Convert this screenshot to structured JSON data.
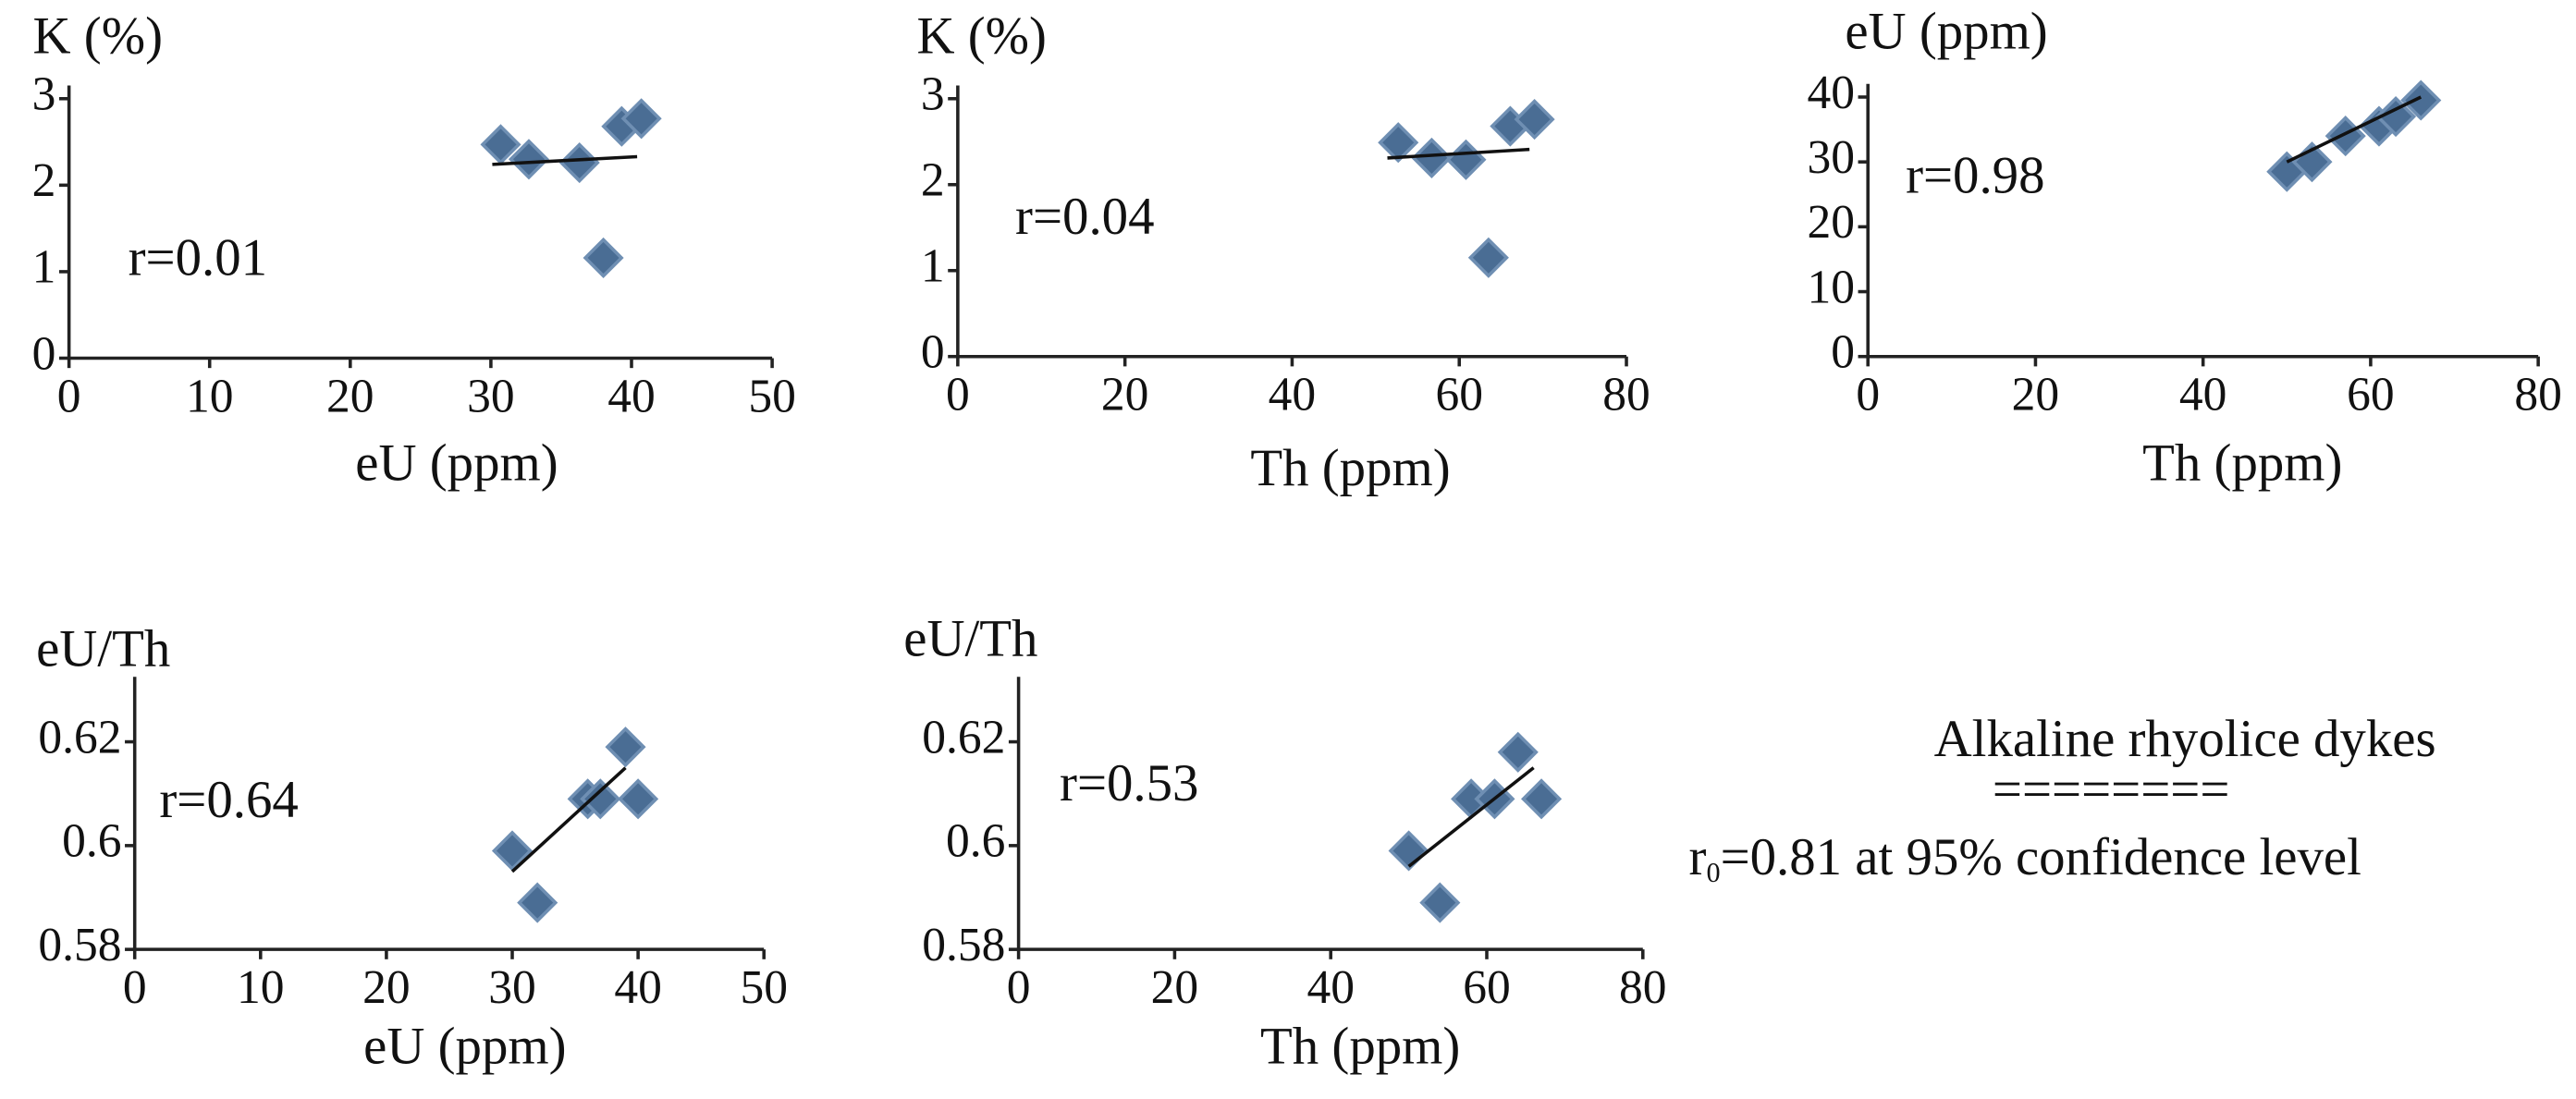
{
  "chart_data": [
    {
      "type": "scatter",
      "ylabel": "K (%)",
      "xlabel": "eU (ppm)",
      "annotation": "r=0.01",
      "color": "#4a6d94",
      "x": [
        30.7,
        32.7,
        36.3,
        38,
        39.3,
        40.7
      ],
      "values": [
        2.47,
        2.3,
        2.26,
        1.16,
        2.68,
        2.77
      ],
      "trend": {
        "x": [
          30.1,
          40.4
        ],
        "values": [
          2.24,
          2.33
        ]
      },
      "xlim": [
        0,
        50
      ],
      "xticks": [
        0,
        10,
        20,
        30,
        40,
        50
      ],
      "ylim": [
        0,
        3
      ],
      "yticks": [
        0,
        1,
        2,
        3
      ]
    },
    {
      "type": "scatter",
      "ylabel": "K (%)",
      "xlabel": "Th (ppm)",
      "annotation": "r=0.04",
      "color": "#4a6d94",
      "x": [
        52.7,
        56.7,
        60.8,
        63.5,
        66.1,
        69
      ],
      "values": [
        2.49,
        2.31,
        2.29,
        1.15,
        2.68,
        2.76
      ],
      "trend": {
        "x": [
          51.4,
          68.4
        ],
        "values": [
          2.31,
          2.41
        ]
      },
      "xlim": [
        0,
        80
      ],
      "xticks": [
        0,
        20,
        40,
        60,
        80
      ],
      "ylim": [
        0,
        3
      ],
      "yticks": [
        0,
        1,
        2,
        3
      ]
    },
    {
      "type": "scatter",
      "ylabel": "eU (ppm)",
      "xlabel": "Th (ppm)",
      "annotation": "r=0.98",
      "color": "#4a6d94",
      "x": [
        50,
        53,
        57,
        61,
        63,
        66
      ],
      "values": [
        28.5,
        30,
        34,
        35.5,
        37,
        39.5
      ],
      "trend": {
        "x": [
          50,
          66
        ],
        "values": [
          30,
          40
        ]
      },
      "xlim": [
        0,
        80
      ],
      "xticks": [
        0,
        20,
        40,
        60,
        80
      ],
      "ylim": [
        0,
        40
      ],
      "yticks": [
        0,
        10,
        20,
        30,
        40
      ]
    },
    {
      "type": "scatter",
      "ylabel": "eU/Th",
      "xlabel": "eU (ppm)",
      "annotation": "r=0.64",
      "color": "#4a6d94",
      "x": [
        30,
        32,
        36,
        37,
        39,
        40
      ],
      "values": [
        0.599,
        0.589,
        0.609,
        0.609,
        0.619,
        0.609
      ],
      "trend": {
        "x": [
          30,
          39
        ],
        "values": [
          0.595,
          0.615
        ]
      },
      "xlim": [
        0,
        50
      ],
      "xticks": [
        0,
        10,
        20,
        30,
        40,
        50
      ],
      "ylim": [
        0.58,
        0.63
      ],
      "yticks": [
        0.58,
        0.6,
        0.62
      ]
    },
    {
      "type": "scatter",
      "ylabel": "eU/Th",
      "xlabel": "Th (ppm)",
      "annotation": "r=0.53",
      "color": "#4a6d94",
      "x": [
        50,
        54,
        58,
        61,
        64,
        67
      ],
      "values": [
        0.599,
        0.589,
        0.609,
        0.609,
        0.618,
        0.609
      ],
      "trend": {
        "x": [
          50,
          66
        ],
        "values": [
          0.596,
          0.615
        ]
      },
      "xlim": [
        0,
        80
      ],
      "xticks": [
        0,
        20,
        40,
        60,
        80
      ],
      "ylim": [
        0.58,
        0.63
      ],
      "yticks": [
        0.58,
        0.6,
        0.62
      ]
    }
  ],
  "note": {
    "title": "Alkaline rhyolice dykes",
    "divider": "========",
    "confidence": {
      "prefix": "r",
      "subscript": "0",
      "text": "=0.81 at 95% confidence level"
    }
  }
}
